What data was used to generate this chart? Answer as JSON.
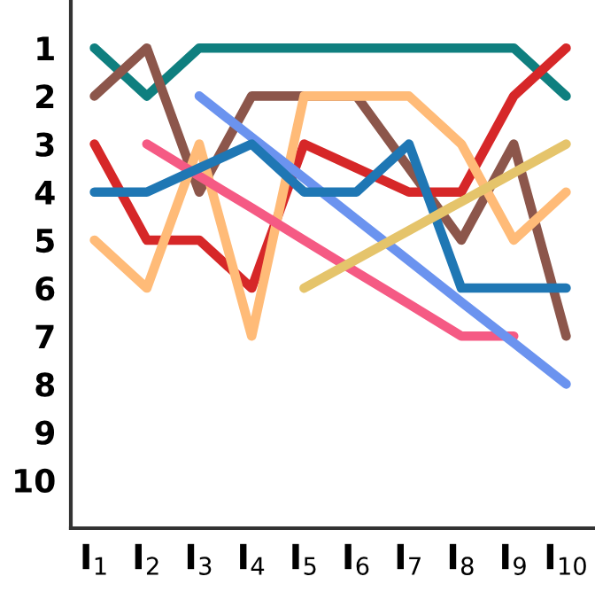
{
  "chart_data": {
    "type": "line",
    "categories": [
      "I$_{1}$",
      "I$_{2}$",
      "I$_{3}$",
      "I$_{4}$",
      "I$_{5}$",
      "I$_{6}$",
      "I$_{7}$",
      "I$_{8}$",
      "I$_{9}$",
      "I$_{10}$"
    ],
    "series": [
      {
        "color": "#0f7f7f",
        "values": [
          1,
          2,
          1,
          1,
          1,
          1,
          1,
          1,
          1,
          2
        ]
      },
      {
        "color": "#8c564b",
        "values": [
          2,
          1,
          4,
          2,
          2,
          2,
          3.5,
          5,
          3,
          7
        ]
      },
      {
        "color": "#d62728",
        "values": [
          3,
          5,
          5,
          6,
          3,
          3.5,
          4,
          4,
          2,
          1
        ]
      },
      {
        "color": "#ffbb78",
        "values": [
          5,
          6,
          3,
          7,
          2,
          2,
          2,
          3,
          5,
          4
        ]
      },
      {
        "color": "#f55a84",
        "values": [
          null,
          3,
          3.67,
          4.33,
          5,
          5.67,
          6.33,
          7,
          7,
          null
        ]
      },
      {
        "color": "#6b93ef",
        "values": [
          null,
          null,
          2,
          2.86,
          3.71,
          4.57,
          5.43,
          6.29,
          7.14,
          8
        ]
      },
      {
        "color": "#1f77b4",
        "values": [
          4,
          4,
          3.5,
          3,
          4,
          4,
          3,
          6,
          6,
          6
        ]
      },
      {
        "color": "#e5c46b",
        "values": [
          null,
          null,
          null,
          null,
          6,
          5.4,
          4.8,
          4.2,
          3.6,
          3
        ]
      }
    ],
    "ylim": [
      11,
      0
    ],
    "yticks": [
      1,
      2,
      3,
      4,
      5,
      6,
      7,
      8,
      9,
      10
    ],
    "grid": false,
    "marker": "none",
    "line_style": "solid"
  }
}
